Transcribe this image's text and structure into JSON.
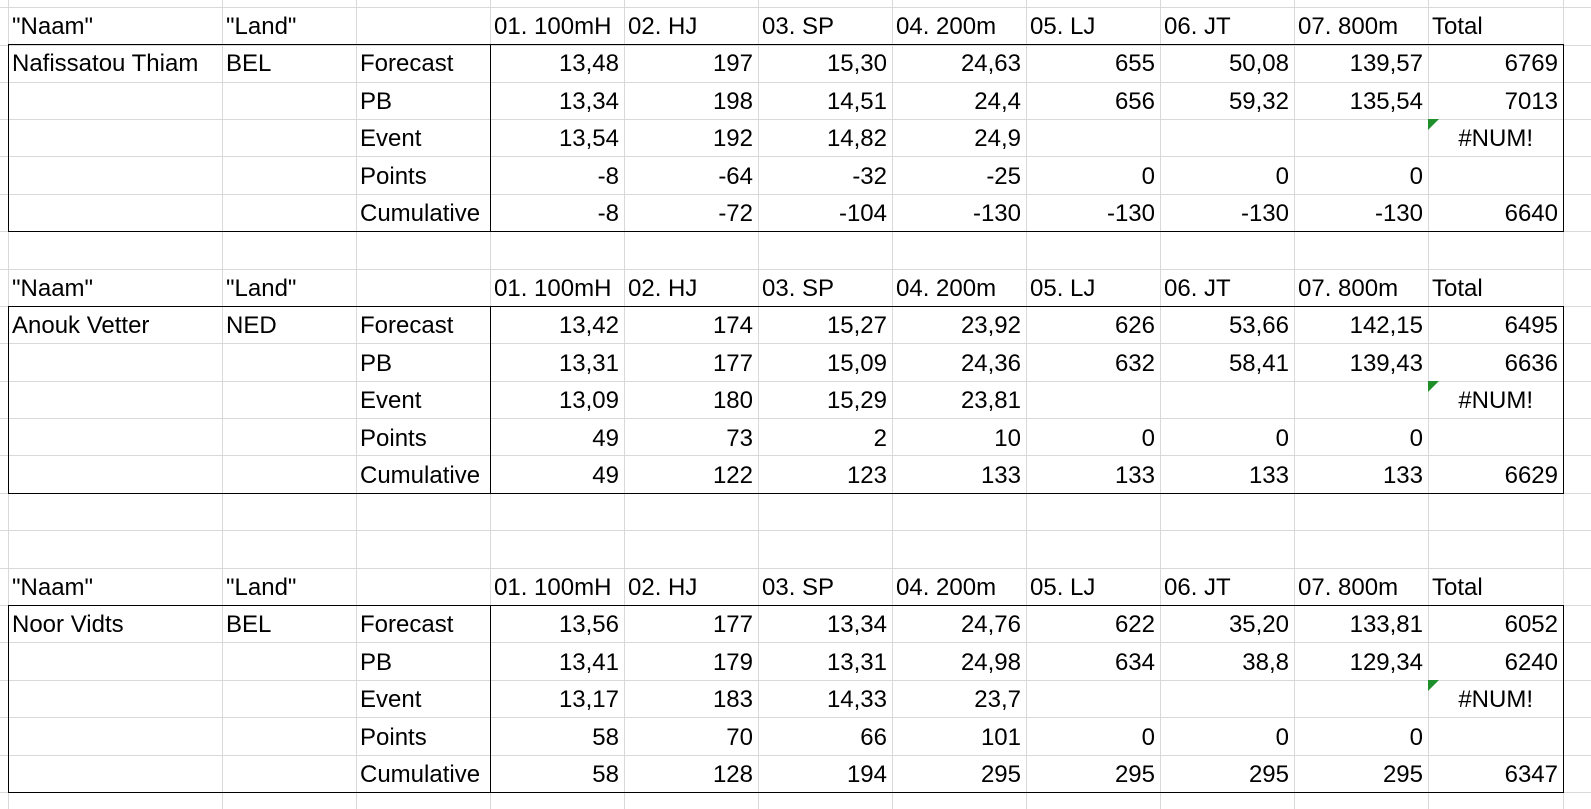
{
  "blocks": [
    {
      "header": {
        "naam": "\"Naam\"",
        "land": "\"Land\"",
        "events": [
          "01. 100mH",
          "02. HJ",
          "03. SP",
          "04. 200m",
          "05. LJ",
          "06. JT",
          "07. 800m"
        ],
        "total": "Total"
      },
      "athlete": "Nafissatou Thiam",
      "country": "BEL",
      "rows": [
        {
          "label": "Forecast",
          "values": [
            "13,48",
            "197",
            "15,30",
            "24,63",
            "655",
            "50,08",
            "139,57"
          ],
          "total": "6769"
        },
        {
          "label": "PB",
          "values": [
            "13,34",
            "198",
            "14,51",
            "24,4",
            "656",
            "59,32",
            "135,54"
          ],
          "total": "7013"
        },
        {
          "label": "Event",
          "values": [
            "13,54",
            "192",
            "14,82",
            "24,9",
            "",
            "",
            ""
          ],
          "total": "#NUM!"
        },
        {
          "label": "Points",
          "values": [
            "-8",
            "-64",
            "-32",
            "-25",
            "0",
            "0",
            "0"
          ],
          "total": ""
        },
        {
          "label": "Cumulative",
          "values": [
            "-8",
            "-72",
            "-104",
            "-130",
            "-130",
            "-130",
            "-130"
          ],
          "total": "6640"
        }
      ]
    },
    {
      "header": {
        "naam": "\"Naam\"",
        "land": "\"Land\"",
        "events": [
          "01. 100mH",
          "02. HJ",
          "03. SP",
          "04. 200m",
          "05. LJ",
          "06. JT",
          "07. 800m"
        ],
        "total": "Total"
      },
      "athlete": "Anouk Vetter",
      "country": "NED",
      "rows": [
        {
          "label": "Forecast",
          "values": [
            "13,42",
            "174",
            "15,27",
            "23,92",
            "626",
            "53,66",
            "142,15"
          ],
          "total": "6495"
        },
        {
          "label": "PB",
          "values": [
            "13,31",
            "177",
            "15,09",
            "24,36",
            "632",
            "58,41",
            "139,43"
          ],
          "total": "6636"
        },
        {
          "label": "Event",
          "values": [
            "13,09",
            "180",
            "15,29",
            "23,81",
            "",
            "",
            ""
          ],
          "total": "#NUM!"
        },
        {
          "label": "Points",
          "values": [
            "49",
            "73",
            "2",
            "10",
            "0",
            "0",
            "0"
          ],
          "total": ""
        },
        {
          "label": "Cumulative",
          "values": [
            "49",
            "122",
            "123",
            "133",
            "133",
            "133",
            "133"
          ],
          "total": "6629"
        }
      ]
    },
    {
      "header": {
        "naam": "\"Naam\"",
        "land": "\"Land\"",
        "events": [
          "01. 100mH",
          "02. HJ",
          "03. SP",
          "04. 200m",
          "05. LJ",
          "06. JT",
          "07. 800m"
        ],
        "total": "Total"
      },
      "athlete": "Noor Vidts",
      "country": "BEL",
      "rows": [
        {
          "label": "Forecast",
          "values": [
            "13,56",
            "177",
            "13,34",
            "24,76",
            "622",
            "35,20",
            "133,81"
          ],
          "total": "6052"
        },
        {
          "label": "PB",
          "values": [
            "13,41",
            "179",
            "13,31",
            "24,98",
            "634",
            "38,8",
            "129,34"
          ],
          "total": "6240"
        },
        {
          "label": "Event",
          "values": [
            "13,17",
            "183",
            "14,33",
            "23,7",
            "",
            "",
            ""
          ],
          "total": "#NUM!"
        },
        {
          "label": "Points",
          "values": [
            "58",
            "70",
            "66",
            "101",
            "0",
            "0",
            "0"
          ],
          "total": ""
        },
        {
          "label": "Cumulative",
          "values": [
            "58",
            "128",
            "194",
            "295",
            "295",
            "295",
            "295"
          ],
          "total": "6347"
        }
      ]
    }
  ],
  "colors": {
    "gridline": "#d9d9d9",
    "border": "#000000",
    "error_indicator": "#1e8f2a"
  }
}
